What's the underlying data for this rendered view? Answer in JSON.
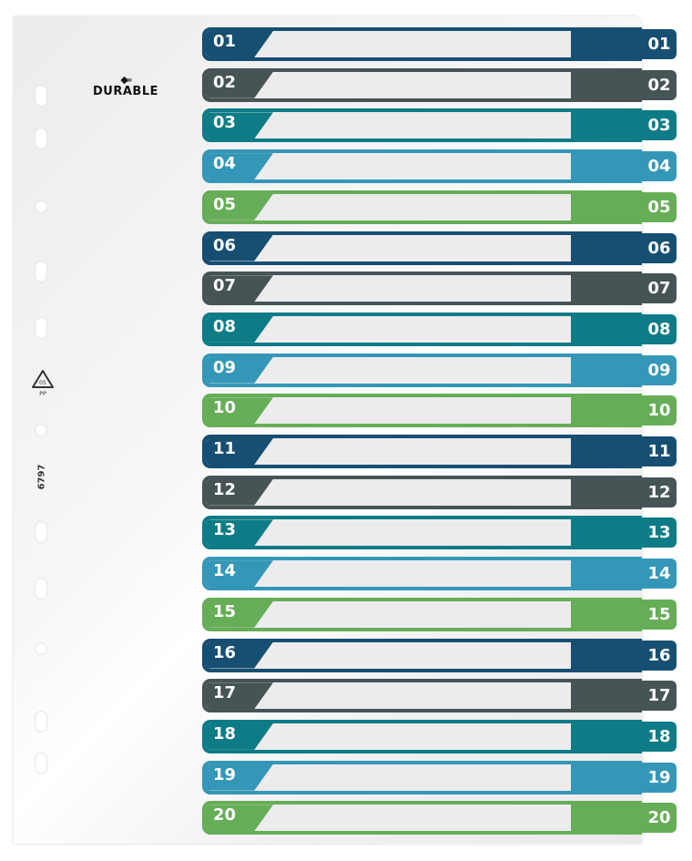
{
  "brand": {
    "name": "DURABLE",
    "mark": "◆»"
  },
  "recycle": {
    "code": "05",
    "material": "PP"
  },
  "product_code": "6797",
  "palette": {
    "navy": "#164f72",
    "slate": "#465456",
    "teal": "#0e7c86",
    "sky": "#3597b8",
    "green": "#66ad57"
  },
  "tabs": [
    {
      "label": "01",
      "color": "navy"
    },
    {
      "label": "02",
      "color": "slate"
    },
    {
      "label": "03",
      "color": "teal"
    },
    {
      "label": "04",
      "color": "sky"
    },
    {
      "label": "05",
      "color": "green"
    },
    {
      "label": "06",
      "color": "navy"
    },
    {
      "label": "07",
      "color": "slate"
    },
    {
      "label": "08",
      "color": "teal"
    },
    {
      "label": "09",
      "color": "sky"
    },
    {
      "label": "10",
      "color": "green"
    },
    {
      "label": "11",
      "color": "navy"
    },
    {
      "label": "12",
      "color": "slate"
    },
    {
      "label": "13",
      "color": "teal"
    },
    {
      "label": "14",
      "color": "sky"
    },
    {
      "label": "15",
      "color": "green"
    },
    {
      "label": "16",
      "color": "navy"
    },
    {
      "label": "17",
      "color": "slate"
    },
    {
      "label": "18",
      "color": "teal"
    },
    {
      "label": "19",
      "color": "sky"
    },
    {
      "label": "20",
      "color": "green"
    }
  ]
}
